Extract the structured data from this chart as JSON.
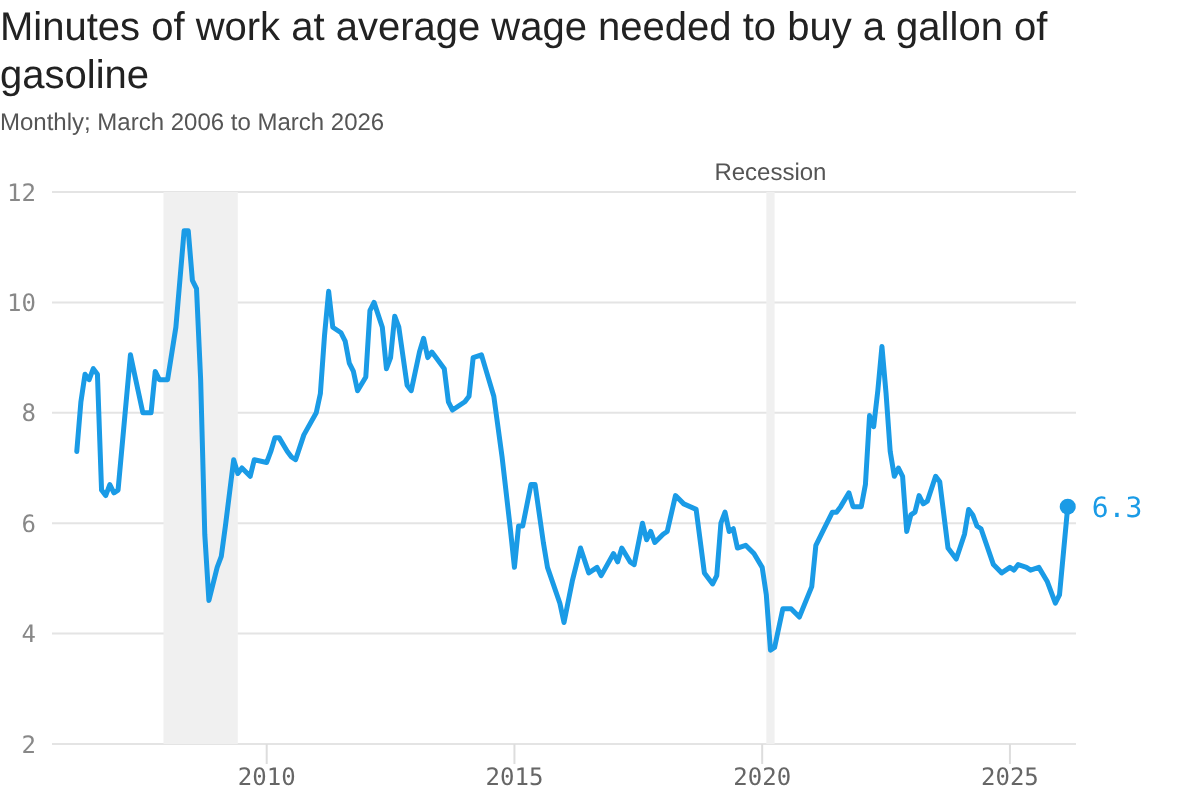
{
  "chart_data": {
    "type": "line",
    "title": "Minutes of work at average wage needed to buy a gallon of gasoline",
    "subtitle": "Monthly; March 2006 to March 2026",
    "x": [
      "2006-03",
      "2006-04",
      "2006-05",
      "2006-06",
      "2006-07",
      "2006-08",
      "2006-09",
      "2006-10",
      "2006-11",
      "2006-12",
      "2007-01",
      "2007-04",
      "2007-05",
      "2007-07",
      "2007-09",
      "2007-10",
      "2007-11",
      "2008-01",
      "2008-03",
      "2008-05",
      "2008-06",
      "2008-07",
      "2008-08",
      "2008-09",
      "2008-10",
      "2008-11",
      "2009-01",
      "2009-02",
      "2009-03",
      "2009-05",
      "2009-06",
      "2009-07",
      "2009-09",
      "2009-10",
      "2010-01",
      "2010-02",
      "2010-03",
      "2010-04",
      "2010-06",
      "2010-07",
      "2010-08",
      "2010-10",
      "2011-01",
      "2011-02",
      "2011-03",
      "2011-04",
      "2011-05",
      "2011-07",
      "2011-08",
      "2011-09",
      "2011-10",
      "2011-11",
      "2012-01",
      "2012-02",
      "2012-03",
      "2012-05",
      "2012-06",
      "2012-07",
      "2012-08",
      "2012-09",
      "2012-11",
      "2012-12",
      "2013-02",
      "2013-03",
      "2013-04",
      "2013-05",
      "2013-06",
      "2013-08",
      "2013-09",
      "2013-10",
      "2014-01",
      "2014-02",
      "2014-03",
      "2014-05",
      "2014-06",
      "2014-08",
      "2014-10",
      "2014-12",
      "2015-01",
      "2015-02",
      "2015-03",
      "2015-05",
      "2015-06",
      "2015-08",
      "2015-09",
      "2015-12",
      "2016-01",
      "2016-03",
      "2016-05",
      "2016-07",
      "2016-09",
      "2016-10",
      "2017-01",
      "2017-02",
      "2017-03",
      "2017-05",
      "2017-06",
      "2017-08",
      "2017-09",
      "2017-10",
      "2017-11",
      "2018-01",
      "2018-02",
      "2018-04",
      "2018-06",
      "2018-09",
      "2018-11",
      "2019-01",
      "2019-02",
      "2019-03",
      "2019-04",
      "2019-05",
      "2019-06",
      "2019-07",
      "2019-09",
      "2019-11",
      "2020-01",
      "2020-02",
      "2020-03",
      "2020-04",
      "2020-06",
      "2020-08",
      "2020-10",
      "2021-01",
      "2021-02",
      "2021-04",
      "2021-06",
      "2021-07",
      "2021-08",
      "2021-10",
      "2021-11",
      "2022-01",
      "2022-02",
      "2022-03",
      "2022-04",
      "2022-05",
      "2022-06",
      "2022-07",
      "2022-08",
      "2022-09",
      "2022-10",
      "2022-11",
      "2022-12",
      "2023-01",
      "2023-02",
      "2023-03",
      "2023-04",
      "2023-05",
      "2023-07",
      "2023-08",
      "2023-10",
      "2023-12",
      "2024-02",
      "2024-03",
      "2024-04",
      "2024-05",
      "2024-06",
      "2024-09",
      "2024-11",
      "2025-01",
      "2025-02",
      "2025-03",
      "2025-05",
      "2025-06",
      "2025-08",
      "2025-10",
      "2025-12",
      "2026-01",
      "2026-03"
    ],
    "series": [
      {
        "color": "#1a9be6",
        "values": [
          7.3,
          8.2,
          8.7,
          8.6,
          8.8,
          8.7,
          6.6,
          6.5,
          6.7,
          6.55,
          6.6,
          9.05,
          8.7,
          8.0,
          8.0,
          8.75,
          8.6,
          8.6,
          9.55,
          11.3,
          11.3,
          10.4,
          10.25,
          8.6,
          5.8,
          4.6,
          5.2,
          5.4,
          5.95,
          7.15,
          6.9,
          7.0,
          6.85,
          7.15,
          7.1,
          7.3,
          7.55,
          7.55,
          7.3,
          7.2,
          7.15,
          7.6,
          8.0,
          8.35,
          9.4,
          10.2,
          9.55,
          9.45,
          9.3,
          8.9,
          8.75,
          8.4,
          8.65,
          9.85,
          10.0,
          9.55,
          8.8,
          9.0,
          9.75,
          9.55,
          8.5,
          8.4,
          9.1,
          9.35,
          9.0,
          9.1,
          9.0,
          8.8,
          8.2,
          8.05,
          8.2,
          8.3,
          9.0,
          9.05,
          8.8,
          8.3,
          7.2,
          5.9,
          5.2,
          5.95,
          5.95,
          6.7,
          6.7,
          5.65,
          5.2,
          4.55,
          4.2,
          4.95,
          5.55,
          5.1,
          5.2,
          5.05,
          5.45,
          5.3,
          5.55,
          5.3,
          5.25,
          6.0,
          5.7,
          5.85,
          5.65,
          5.8,
          5.85,
          6.5,
          6.35,
          6.25,
          5.1,
          4.9,
          5.05,
          6.0,
          6.2,
          5.85,
          5.9,
          5.55,
          5.6,
          5.45,
          5.2,
          4.7,
          3.7,
          3.75,
          4.45,
          4.45,
          4.3,
          4.85,
          5.6,
          5.9,
          6.2,
          6.2,
          6.3,
          6.55,
          6.3,
          6.3,
          6.7,
          7.95,
          7.75,
          8.4,
          9.2,
          8.35,
          7.3,
          6.85,
          7.0,
          6.85,
          5.85,
          6.15,
          6.2,
          6.5,
          6.35,
          6.4,
          6.85,
          6.75,
          5.55,
          5.35,
          5.8,
          6.25,
          6.15,
          5.95,
          5.9,
          5.25,
          5.1,
          5.2,
          5.15,
          5.25,
          5.2,
          5.15,
          5.2,
          4.95,
          4.55,
          4.7,
          6.3
        ]
      }
    ],
    "xlim": [
      "2005-09",
      "2026-05"
    ],
    "xticks": [
      "2010",
      "2015",
      "2020",
      "2025"
    ],
    "ylim": [
      2,
      12
    ],
    "yticks": [
      2,
      4,
      6,
      8,
      10,
      12
    ],
    "grid": "y",
    "marker": "none",
    "line_style": "solid",
    "bands": [
      {
        "axis": "x",
        "from": "2007-12",
        "to": "2009-06",
        "color": "#f0f0f0"
      },
      {
        "axis": "x",
        "from": "2020-02",
        "to": "2020-04",
        "label": "Recession",
        "color": "#f0f0f0"
      }
    ],
    "annotations": [
      {
        "text": "6.3",
        "x": "2026-03",
        "y": 6.3
      }
    ]
  }
}
